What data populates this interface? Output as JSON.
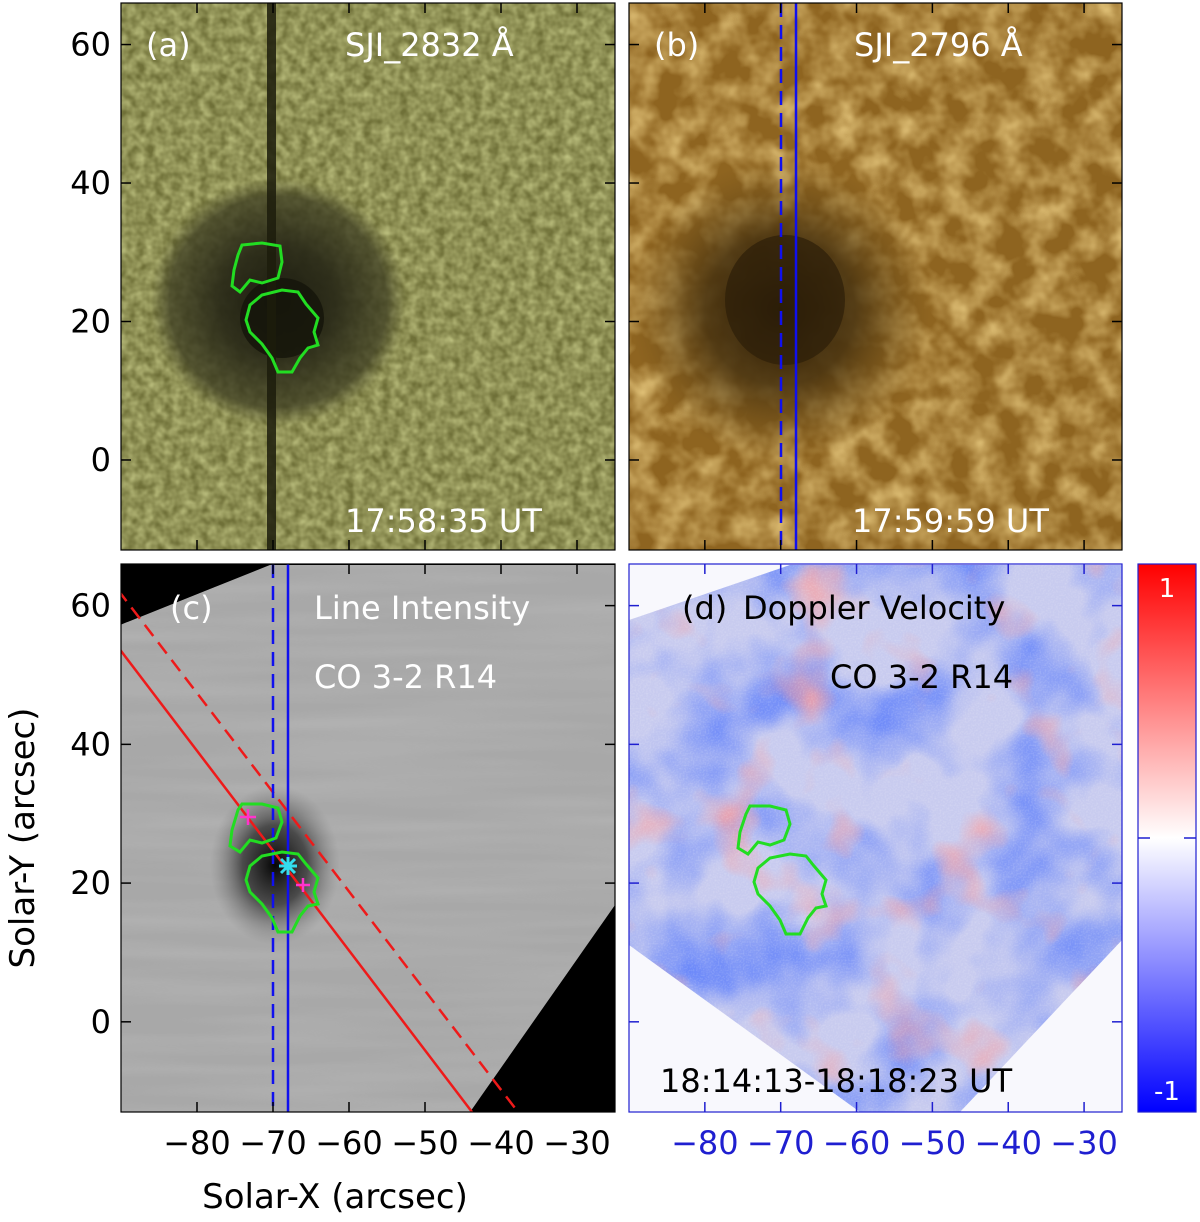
{
  "figure": {
    "axes": {
      "ylabel": "Solar-Y (arcsec)",
      "xlabel": "Solar-X (arcsec)",
      "y_ticks": [
        "60",
        "40",
        "20",
        "0"
      ],
      "x_ticks": [
        "-80",
        "-70",
        "-60",
        "-50",
        "-40",
        "-30"
      ],
      "x_range": [
        -90,
        -25
      ],
      "y_range": [
        -13,
        66
      ]
    },
    "panels": {
      "a": {
        "label": "(a)",
        "title": "SJI_2832 Å",
        "time": "17:58:35 UT"
      },
      "b": {
        "label": "(b)",
        "title": "SJI_2796 Å",
        "time": "17:59:59 UT"
      },
      "c": {
        "label": "(c)",
        "title": "Line Intensity",
        "subtitle": "CO 3-2 R14"
      },
      "d": {
        "label": "(d)",
        "title": "Doppler Velocity",
        "subtitle": "CO 3-2 R14",
        "time": "18:14:13-18:18:23 UT"
      }
    },
    "colorbar": {
      "max_label": "1",
      "min_label": "-1"
    },
    "colors": {
      "contour": "#22dd22",
      "slit_line": "#1010ee",
      "cut_line": "#ee1a1a",
      "marker_cross": "#ff33cc",
      "marker_star": "#33ddee",
      "tick_d": "#1f1fd0"
    }
  }
}
